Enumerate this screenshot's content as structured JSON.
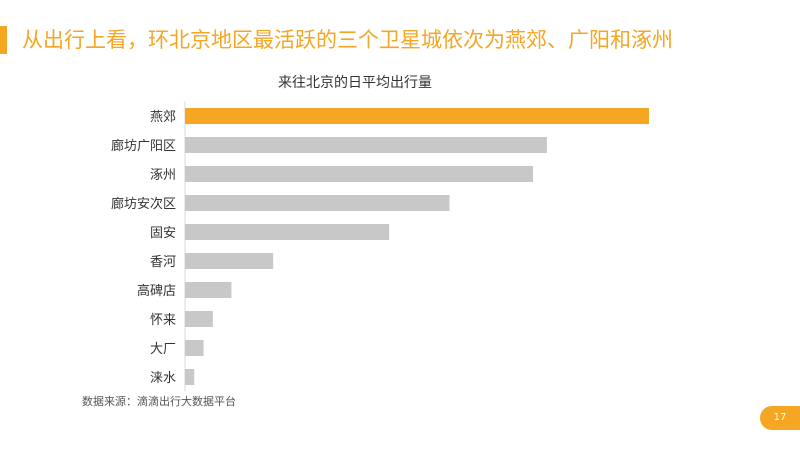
{
  "slide": {
    "headline": "从出行上看，环北京地区最活跃的三个卫星城依次为燕郊、广阳和涿州",
    "source": "数据来源：滴滴出行大数据平台",
    "page_number": "17",
    "accent_color": "#F5A623"
  },
  "chart_data": {
    "type": "bar",
    "orientation": "horizontal",
    "title": "来往北京的日平均出行量",
    "categories": [
      "燕郊",
      "廊坊广阳区",
      "涿州",
      "廊坊安次区",
      "固安",
      "香河",
      "高碑店",
      "怀来",
      "大厂",
      "涞水"
    ],
    "values": [
      100,
      78,
      75,
      57,
      44,
      19,
      10,
      6,
      4,
      2
    ],
    "xlabel": "",
    "ylabel": "",
    "xlim": [
      0,
      100
    ],
    "grid": false,
    "highlight_color": "#F5A623",
    "bar_color": "#C8C8C8"
  }
}
